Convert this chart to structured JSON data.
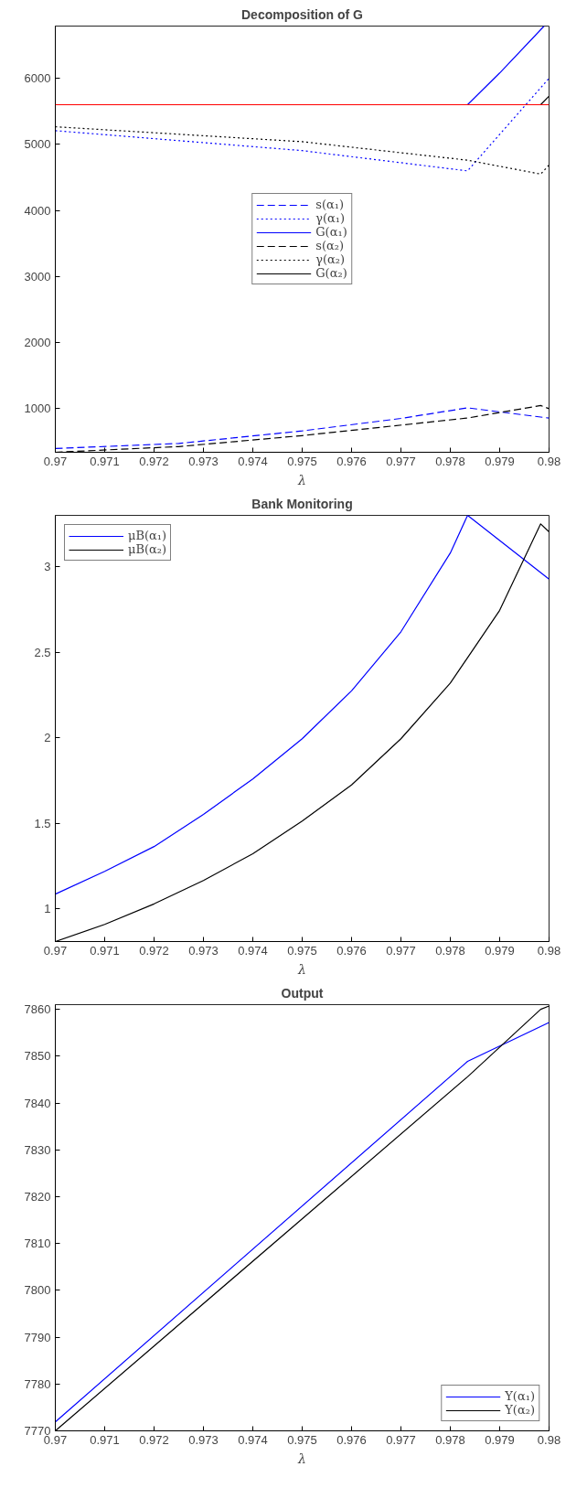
{
  "chart_data": [
    {
      "type": "line",
      "title": "Decomposition of G",
      "xlabel": "λ",
      "xlim": [
        0.97,
        0.98
      ],
      "xticks": [
        0.97,
        0.971,
        0.972,
        0.973,
        0.974,
        0.975,
        0.976,
        0.977,
        0.978,
        0.979,
        0.98
      ],
      "ylim": [
        340,
        6790
      ],
      "yticks": [
        1000,
        2000,
        3000,
        4000,
        5000,
        6000
      ],
      "grid": false,
      "legend": "center",
      "ref_lines": [
        {
          "axis": "y",
          "value": 5600,
          "color": "#ff0000",
          "line_style": "solid"
        }
      ],
      "series": [
        {
          "name": "s(α₁)",
          "color": "#0000ff",
          "line_style": "dashed",
          "x": [
            0.97,
            0.9725,
            0.975,
            0.977,
            0.97835,
            0.98
          ],
          "values": [
            396,
            473,
            663,
            852,
            1012,
            857
          ]
        },
        {
          "name": "γ(α₁)",
          "color": "#0000ff",
          "line_style": "dotted",
          "x": [
            0.97,
            0.975,
            0.97835,
            0.98
          ],
          "values": [
            5207,
            4905,
            4598,
            6000
          ]
        },
        {
          "name": "G(α₁)",
          "color": "#0000ff",
          "line_style": "solid",
          "x": [
            0.97835,
            0.979,
            0.9799
          ],
          "values": [
            5600,
            6080,
            6790
          ]
        },
        {
          "name": "s(α₂)",
          "color": "#000000",
          "line_style": "dashed",
          "x": [
            0.97,
            0.9725,
            0.975,
            0.97835,
            0.97983,
            0.98
          ],
          "values": [
            340,
            426,
            592,
            858,
            1047,
            1000
          ]
        },
        {
          "name": "γ(α₂)",
          "color": "#000000",
          "line_style": "dotted",
          "x": [
            0.97,
            0.975,
            0.97835,
            0.97983,
            0.98
          ],
          "values": [
            5266,
            5040,
            4760,
            4550,
            4686
          ]
        },
        {
          "name": "G(α₂)",
          "color": "#000000",
          "line_style": "solid",
          "x": [
            0.97983,
            0.98
          ],
          "values": [
            5600,
            5730
          ]
        }
      ]
    },
    {
      "type": "line",
      "title": "Bank Monitoring",
      "xlabel": "λ",
      "xlim": [
        0.97,
        0.98
      ],
      "xticks": [
        0.97,
        0.971,
        0.972,
        0.973,
        0.974,
        0.975,
        0.976,
        0.977,
        0.978,
        0.979,
        0.98
      ],
      "ylim": [
        0.81,
        3.3
      ],
      "yticks": [
        1,
        1.5,
        2,
        2.5,
        3
      ],
      "grid": false,
      "legend": "top left",
      "series": [
        {
          "name": "μB(α₁)",
          "color": "#0000ff",
          "line_style": "solid",
          "x": [
            0.97,
            0.971,
            0.972,
            0.973,
            0.974,
            0.975,
            0.976,
            0.977,
            0.978,
            0.97835,
            0.98
          ],
          "values": [
            1.087,
            1.22,
            1.365,
            1.553,
            1.76,
            1.995,
            2.275,
            2.62,
            3.08,
            3.3,
            2.927
          ]
        },
        {
          "name": "μB(α₂)",
          "color": "#000000",
          "line_style": "solid",
          "x": [
            0.97,
            0.971,
            0.972,
            0.973,
            0.974,
            0.975,
            0.976,
            0.977,
            0.978,
            0.979,
            0.97983,
            0.98
          ],
          "values": [
            0.81,
            0.91,
            1.03,
            1.167,
            1.323,
            1.514,
            1.725,
            1.995,
            2.32,
            2.745,
            3.25,
            3.204
          ]
        }
      ]
    },
    {
      "type": "line",
      "title": "Output",
      "xlabel": "λ",
      "xlim": [
        0.97,
        0.98
      ],
      "xticks": [
        0.97,
        0.971,
        0.972,
        0.973,
        0.974,
        0.975,
        0.976,
        0.977,
        0.978,
        0.979,
        0.98
      ],
      "ylim": [
        7770,
        7861
      ],
      "yticks": [
        7770,
        7780,
        7790,
        7800,
        7810,
        7820,
        7830,
        7840,
        7850,
        7860
      ],
      "grid": false,
      "legend": "bottom right",
      "series": [
        {
          "name": "Y(α₁)",
          "color": "#0000ff",
          "line_style": "solid",
          "x": [
            0.97,
            0.97835,
            0.98
          ],
          "values": [
            7771.9,
            7848.9,
            7857.2
          ]
        },
        {
          "name": "Y(α₂)",
          "color": "#000000",
          "line_style": "solid",
          "x": [
            0.97,
            0.97835,
            0.97983,
            0.98
          ],
          "values": [
            7770,
            7845.6,
            7860,
            7860.7
          ]
        }
      ]
    }
  ]
}
